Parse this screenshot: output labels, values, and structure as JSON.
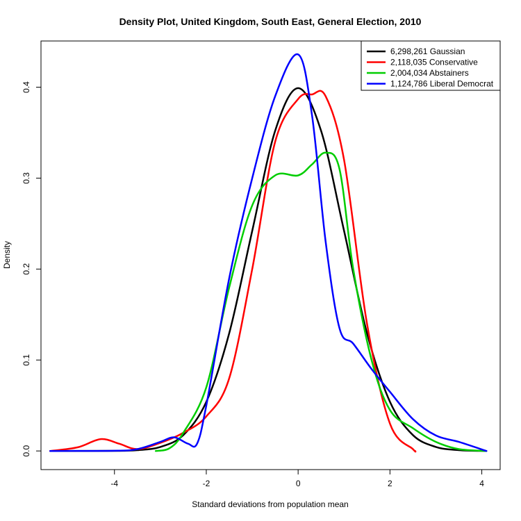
{
  "chart_data": {
    "type": "line",
    "title": "Density Plot, United Kingdom, South East, General Election, 2010",
    "xlabel": "Standard deviations from population mean",
    "ylabel": "Density",
    "xlim": [
      -5.6,
      4.4
    ],
    "ylim": [
      -0.0205,
      0.4508
    ],
    "x_ticks": [
      "-4",
      "-2",
      "0",
      "2",
      "4"
    ],
    "y_ticks": [
      "0.0",
      "0.1",
      "0.2",
      "0.3",
      "0.4"
    ],
    "grid": false,
    "legend_position": "top-right",
    "series": [
      {
        "name": "6,298,261 Gaussian",
        "color": "#000000",
        "line_width": 2.5,
        "points": [
          [
            -5.4,
            0.0
          ],
          [
            -4,
            0.0001
          ],
          [
            -3.5,
            0.0009
          ],
          [
            -3,
            0.0044
          ],
          [
            -2.5,
            0.0175
          ],
          [
            -2,
            0.054
          ],
          [
            -1.5,
            0.1295
          ],
          [
            -1,
            0.242
          ],
          [
            -0.5,
            0.352
          ],
          [
            0,
            0.3989
          ],
          [
            0.5,
            0.352
          ],
          [
            1,
            0.242
          ],
          [
            1.5,
            0.1295
          ],
          [
            2,
            0.054
          ],
          [
            2.5,
            0.0175
          ],
          [
            3,
            0.0044
          ],
          [
            3.5,
            0.0009
          ],
          [
            4.1,
            0.0
          ]
        ]
      },
      {
        "name": "2,118,035 Conservative",
        "color": "#ff0000",
        "line_width": 2.5,
        "points": [
          [
            -5.4,
            0.0
          ],
          [
            -4.8,
            0.004
          ],
          [
            -4.3,
            0.013
          ],
          [
            -3.9,
            0.008
          ],
          [
            -3.5,
            0.002
          ],
          [
            -3,
            0.009
          ],
          [
            -2.5,
            0.02
          ],
          [
            -2,
            0.038
          ],
          [
            -1.5,
            0.08
          ],
          [
            -1,
            0.2
          ],
          [
            -0.5,
            0.34
          ],
          [
            0,
            0.387
          ],
          [
            0.3,
            0.392
          ],
          [
            0.6,
            0.39
          ],
          [
            1,
            0.32
          ],
          [
            1.5,
            0.14
          ],
          [
            2,
            0.03
          ],
          [
            2.5,
            0.002
          ],
          [
            2.55,
            0.0
          ]
        ]
      },
      {
        "name": "2,004,034 Abstainers",
        "color": "#00cd00",
        "line_width": 2.5,
        "points": [
          [
            -3.1,
            0.0
          ],
          [
            -2.8,
            0.003
          ],
          [
            -2.5,
            0.02
          ],
          [
            -2,
            0.07
          ],
          [
            -1.5,
            0.18
          ],
          [
            -1,
            0.27
          ],
          [
            -0.5,
            0.303
          ],
          [
            0,
            0.303
          ],
          [
            0.3,
            0.315
          ],
          [
            0.6,
            0.328
          ],
          [
            0.9,
            0.31
          ],
          [
            1.2,
            0.2
          ],
          [
            1.6,
            0.1
          ],
          [
            2,
            0.045
          ],
          [
            2.5,
            0.025
          ],
          [
            3,
            0.01
          ],
          [
            3.5,
            0.002
          ],
          [
            4.1,
            0.0
          ]
        ]
      },
      {
        "name": "1,124,786 Liberal Democrat",
        "color": "#0000ff",
        "line_width": 2.5,
        "points": [
          [
            -5.4,
            0.0
          ],
          [
            -4,
            0.0002
          ],
          [
            -3.5,
            0.002
          ],
          [
            -3,
            0.01
          ],
          [
            -2.7,
            0.015
          ],
          [
            -2.4,
            0.008
          ],
          [
            -2.2,
            0.008
          ],
          [
            -2,
            0.05
          ],
          [
            -1.5,
            0.19
          ],
          [
            -1,
            0.3
          ],
          [
            -0.5,
            0.39
          ],
          [
            0,
            0.436
          ],
          [
            0.3,
            0.37
          ],
          [
            0.6,
            0.23
          ],
          [
            0.9,
            0.135
          ],
          [
            1.2,
            0.118
          ],
          [
            1.6,
            0.09
          ],
          [
            2,
            0.065
          ],
          [
            2.5,
            0.035
          ],
          [
            3,
            0.017
          ],
          [
            3.5,
            0.01
          ],
          [
            4.1,
            0.0
          ]
        ]
      }
    ]
  }
}
